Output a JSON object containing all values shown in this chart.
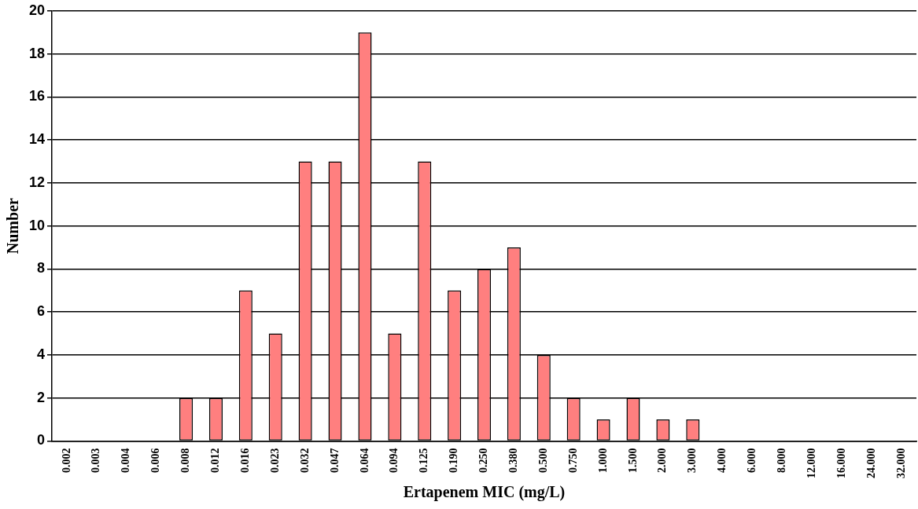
{
  "chart_data": {
    "type": "bar",
    "xlabel": "Ertapenem MIC (mg/L)",
    "ylabel": "Number",
    "categories": [
      "0.002",
      "0.003",
      "0.004",
      "0.006",
      "0.008",
      "0.012",
      "0.016",
      "0.023",
      "0.032",
      "0.047",
      "0.064",
      "0.094",
      "0.125",
      "0.190",
      "0.250",
      "0.380",
      "0.500",
      "0.750",
      "1.000",
      "1.500",
      "2.000",
      "3.000",
      "4.000",
      "6.000",
      "8.000",
      "12.000",
      "16.000",
      "24.000",
      "32.000"
    ],
    "values": [
      0,
      0,
      0,
      0,
      2,
      2,
      7,
      5,
      13,
      13,
      19,
      5,
      13,
      7,
      8,
      9,
      4,
      2,
      1,
      2,
      1,
      1,
      0,
      0,
      0,
      0,
      0,
      0,
      0
    ],
    "color": "#ff7f7f",
    "ylim": [
      0,
      20
    ],
    "yticks": [
      0,
      2,
      4,
      6,
      8,
      10,
      12,
      14,
      16,
      18,
      20
    ],
    "grid": "y",
    "legend": false
  }
}
